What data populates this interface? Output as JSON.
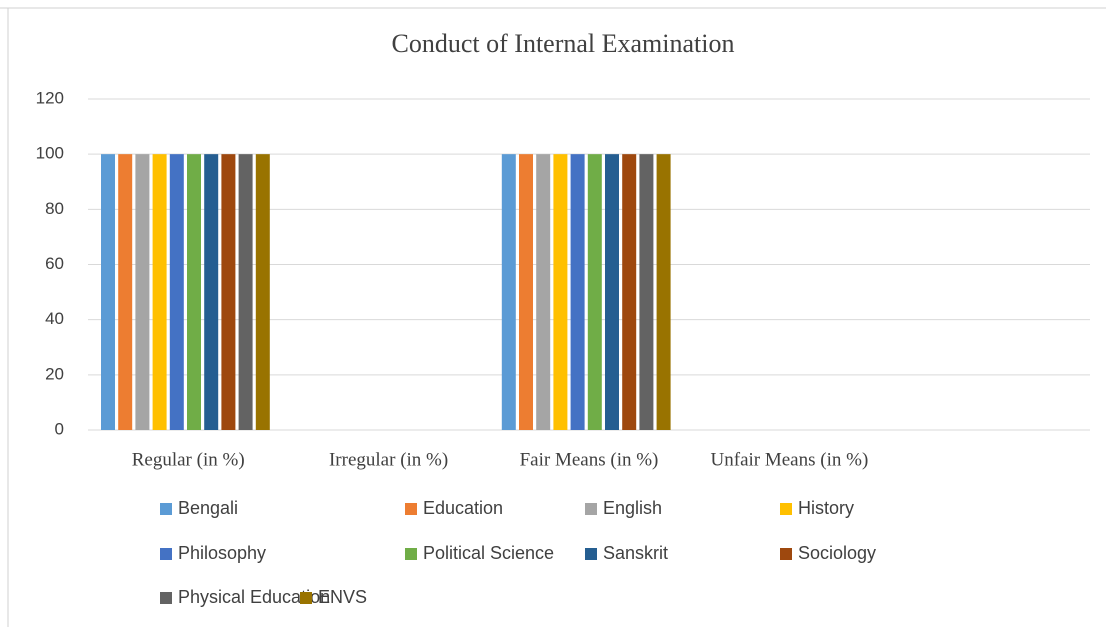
{
  "chart_data": {
    "type": "bar",
    "title": "Conduct of Internal Examination",
    "categories": [
      "Regular (in %)",
      "Irregular (in %)",
      "Fair Means (in %)",
      "Unfair Means (in %)",
      null
    ],
    "series": [
      {
        "name": "Bengali",
        "color": "#5b9bd5",
        "values": [
          100,
          0,
          100,
          0,
          null
        ]
      },
      {
        "name": "Education",
        "color": "#ed7d31",
        "values": [
          100,
          0,
          100,
          0,
          null
        ]
      },
      {
        "name": "English",
        "color": "#a5a5a5",
        "values": [
          100,
          0,
          100,
          0,
          null
        ]
      },
      {
        "name": "History",
        "color": "#ffc000",
        "values": [
          100,
          0,
          100,
          0,
          null
        ]
      },
      {
        "name": "Philosophy",
        "color": "#4472c4",
        "values": [
          100,
          0,
          100,
          0,
          null
        ]
      },
      {
        "name": "Political Science",
        "color": "#70ad47",
        "values": [
          100,
          0,
          100,
          0,
          null
        ]
      },
      {
        "name": "Sanskrit",
        "color": "#255e91",
        "values": [
          100,
          0,
          100,
          0,
          null
        ]
      },
      {
        "name": "Sociology",
        "color": "#9e480e",
        "values": [
          100,
          0,
          100,
          0,
          null
        ]
      },
      {
        "name": "Physical Education",
        "color": "#636363",
        "values": [
          100,
          0,
          100,
          0,
          null
        ]
      },
      {
        "name": "ENVS",
        "color": "#997300",
        "values": [
          100,
          0,
          100,
          0,
          null
        ]
      }
    ],
    "ylim": [
      0,
      120
    ],
    "yticks": [
      0,
      20,
      40,
      60,
      80,
      100,
      120
    ],
    "grid": true,
    "legend": "bottom"
  }
}
